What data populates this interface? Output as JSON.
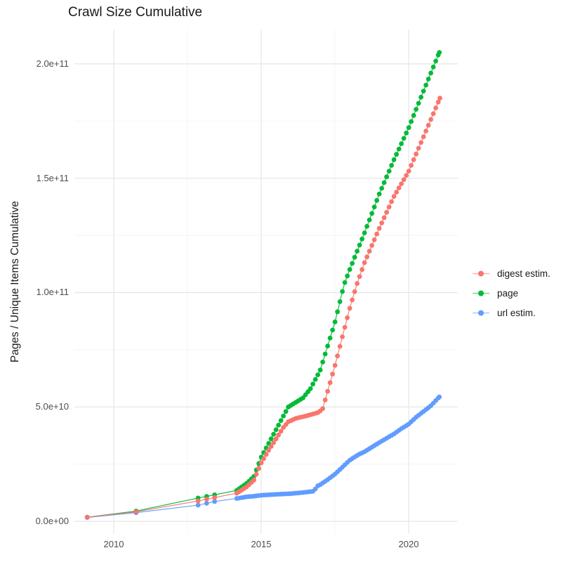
{
  "title": "Crawl Size Cumulative",
  "chart_data": {
    "type": "line",
    "title": "Crawl Size Cumulative",
    "xlabel": "",
    "ylabel": "Pages / Unique Items Cumulative",
    "grid": true,
    "legend_position": "right",
    "xlim": [
      2008.667,
      2021.667
    ],
    "ylim": [
      -5500000000.0,
      215000000000.0
    ],
    "x_ticks": [
      {
        "value": 2010,
        "label": "2010"
      },
      {
        "value": 2015,
        "label": "2015"
      },
      {
        "value": 2020,
        "label": "2020"
      }
    ],
    "x_minor_ticks": [
      2012.5,
      2017.5
    ],
    "y_ticks": [
      {
        "value": 0.0,
        "label": "0.0e+00"
      },
      {
        "value": 50000000000.0,
        "label": "5.0e+10"
      },
      {
        "value": 100000000000.0,
        "label": "1.0e+11"
      },
      {
        "value": 150000000000.0,
        "label": "1.5e+11"
      },
      {
        "value": 200000000000.0,
        "label": "2.0e+11"
      }
    ],
    "y_minor_ticks": [
      25000000000.0,
      75000000000.0,
      125000000000.0,
      175000000000.0
    ],
    "point_sampling": {
      "dense_from_year": 2014.17,
      "interval_years": 0.08333
    },
    "draw_order": [
      1,
      2,
      0
    ],
    "series": [
      {
        "name": "digest estim.",
        "color": "#F8766D",
        "points": [
          [
            2009.1,
            1800000000.0
          ],
          [
            2010.76,
            4200000000.0
          ],
          [
            2012.86,
            8900000000.0
          ],
          [
            2013.15,
            9700000000.0
          ],
          [
            2013.42,
            10400000000.0
          ],
          [
            2014.17,
            12300000000.0
          ],
          [
            2014.5,
            15000000000.0
          ],
          [
            2014.75,
            18000000000.0
          ],
          [
            2015.0,
            25500000000.0
          ],
          [
            2015.25,
            31000000000.0
          ],
          [
            2015.5,
            36000000000.0
          ],
          [
            2015.75,
            41000000000.0
          ],
          [
            2015.92,
            43500000000.0
          ],
          [
            2016.17,
            45000000000.0
          ],
          [
            2016.5,
            46000000000.0
          ],
          [
            2016.92,
            47500000000.0
          ],
          [
            2017.08,
            49000000000.0
          ],
          [
            2017.5,
            68000000000.0
          ],
          [
            2018.0,
            93000000000.0
          ],
          [
            2018.24,
            103500000000.0
          ],
          [
            2018.5,
            113000000000.0
          ],
          [
            2019.0,
            128000000000.0
          ],
          [
            2019.5,
            142000000000.0
          ],
          [
            2020.0,
            153000000000.0
          ],
          [
            2020.5,
            168000000000.0
          ],
          [
            2021.06,
            185000000000.0
          ]
        ]
      },
      {
        "name": "page",
        "color": "#00BA38",
        "points": [
          [
            2009.1,
            1800000000.0
          ],
          [
            2010.76,
            4500000000.0
          ],
          [
            2012.86,
            10200000000.0
          ],
          [
            2013.15,
            10900000000.0
          ],
          [
            2013.42,
            11600000000.0
          ],
          [
            2014.17,
            13500000000.0
          ],
          [
            2014.5,
            16500000000.0
          ],
          [
            2014.75,
            19500000000.0
          ],
          [
            2015.0,
            28000000000.0
          ],
          [
            2015.25,
            34000000000.0
          ],
          [
            2015.5,
            40000000000.0
          ],
          [
            2015.75,
            46000000000.0
          ],
          [
            2015.92,
            50000000000.0
          ],
          [
            2016.17,
            52000000000.0
          ],
          [
            2016.42,
            54000000000.0
          ],
          [
            2016.67,
            58000000000.0
          ],
          [
            2017.0,
            66000000000.0
          ],
          [
            2017.5,
            87000000000.0
          ],
          [
            2017.81,
            103500000000.0
          ],
          [
            2018.0,
            110000000000.0
          ],
          [
            2018.5,
            126000000000.0
          ],
          [
            2019.0,
            143000000000.0
          ],
          [
            2019.5,
            158000000000.0
          ],
          [
            2020.0,
            172000000000.0
          ],
          [
            2020.5,
            188000000000.0
          ],
          [
            2021.04,
            205000000000.0
          ]
        ]
      },
      {
        "name": "url estim.",
        "color": "#619CFF",
        "points": [
          [
            2009.1,
            1700000000.0
          ],
          [
            2010.76,
            3800000000.0
          ],
          [
            2012.86,
            7100000000.0
          ],
          [
            2013.15,
            7900000000.0
          ],
          [
            2013.42,
            8700000000.0
          ],
          [
            2014.17,
            10000000000.0
          ],
          [
            2014.5,
            10700000000.0
          ],
          [
            2014.75,
            11000000000.0
          ],
          [
            2015.0,
            11400000000.0
          ],
          [
            2015.5,
            11800000000.0
          ],
          [
            2016.0,
            12100000000.0
          ],
          [
            2016.33,
            12500000000.0
          ],
          [
            2016.67,
            13000000000.0
          ],
          [
            2016.8,
            13200000000.0
          ],
          [
            2016.88,
            15300000000.0
          ],
          [
            2017.0,
            16000000000.0
          ],
          [
            2017.25,
            18200000000.0
          ],
          [
            2017.5,
            20600000000.0
          ],
          [
            2018.0,
            26700000000.0
          ],
          [
            2018.3,
            29200000000.0
          ],
          [
            2018.5,
            30400000000.0
          ],
          [
            2019.0,
            34400000000.0
          ],
          [
            2019.5,
            38200000000.0
          ],
          [
            2019.75,
            40500000000.0
          ],
          [
            2020.0,
            42500000000.0
          ],
          [
            2020.25,
            45500000000.0
          ],
          [
            2020.5,
            48000000000.0
          ],
          [
            2020.75,
            50500000000.0
          ],
          [
            2021.04,
            54400000000.0
          ]
        ]
      }
    ],
    "style": {
      "grid_major_color": "#e6e6e6",
      "grid_minor_color": "#f2f2f2",
      "point_radius": 3.4,
      "line_width": 1.1
    }
  }
}
